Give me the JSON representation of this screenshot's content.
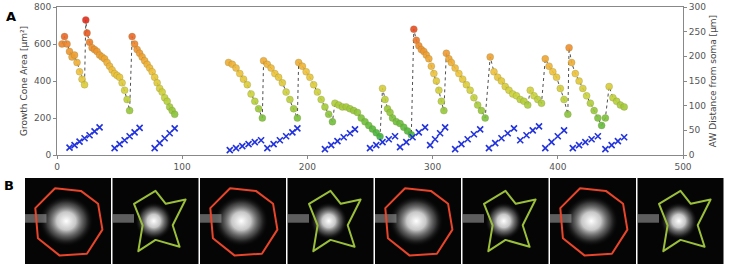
{
  "chart_data": {
    "type": "scatter",
    "title": "A",
    "y_label": "Growth Cone Area [μm²]",
    "y2_label": "AW Distance from soma [μm]",
    "xlim": [
      0,
      500
    ],
    "xticks": [
      0,
      100,
      200,
      300,
      400,
      500
    ],
    "ylim": [
      0,
      800
    ],
    "yticks": [
      0,
      200,
      400,
      600,
      800
    ],
    "y2lim": [
      0,
      300
    ],
    "y2ticks": [
      0,
      50,
      100,
      150,
      200,
      250,
      300
    ],
    "grid": false,
    "series": [
      {
        "marker": "circle",
        "line_style": "dotted",
        "x": [
          4,
          6,
          8,
          10,
          12,
          14,
          16,
          18,
          20,
          22,
          23,
          24,
          26,
          28,
          30,
          32,
          34,
          36,
          38,
          40,
          42,
          44,
          46,
          48,
          50,
          52,
          54,
          56,
          58,
          60,
          62,
          64,
          66,
          68,
          70,
          72,
          74,
          76,
          78,
          80,
          82,
          84,
          86,
          88,
          90,
          92,
          94,
          115,
          137,
          140,
          143,
          146,
          149,
          152,
          155,
          158,
          161,
          164,
          165,
          168,
          171,
          174,
          177,
          180,
          183,
          186,
          189,
          192,
          193,
          196,
          199,
          202,
          205,
          208,
          211,
          214,
          217,
          220,
          222,
          225,
          228,
          231,
          234,
          237,
          240,
          243,
          246,
          249,
          252,
          255,
          258,
          260,
          262,
          264,
          266,
          268,
          271,
          274,
          277,
          280,
          283,
          285,
          287,
          289,
          291,
          293,
          295,
          297,
          299,
          301,
          303,
          305,
          307,
          309,
          311,
          313,
          315,
          318,
          321,
          324,
          327,
          330,
          333,
          336,
          339,
          342,
          346,
          349,
          352,
          355,
          358,
          361,
          364,
          367,
          370,
          373,
          376,
          378,
          381,
          384,
          387,
          390,
          393,
          396,
          399,
          402,
          405,
          408,
          409,
          411,
          414,
          417,
          420,
          423,
          426,
          429,
          432,
          435,
          438,
          441,
          444,
          447,
          450,
          453
        ],
        "values": [
          600,
          640,
          600,
          560,
          530,
          540,
          500,
          450,
          410,
          380,
          730,
          660,
          610,
          580,
          570,
          560,
          540,
          530,
          520,
          500,
          480,
          460,
          440,
          430,
          420,
          390,
          350,
          300,
          240,
          640,
          600,
          570,
          550,
          530,
          510,
          490,
          470,
          450,
          420,
          390,
          360,
          340,
          310,
          290,
          260,
          240,
          220,
          null,
          500,
          490,
          470,
          440,
          410,
          380,
          330,
          290,
          250,
          200,
          510,
          490,
          470,
          440,
          420,
          390,
          340,
          300,
          250,
          200,
          500,
          480,
          450,
          420,
          380,
          340,
          300,
          260,
          220,
          180,
          280,
          270,
          260,
          260,
          250,
          240,
          230,
          200,
          180,
          160,
          140,
          120,
          100,
          360,
          300,
          250,
          230,
          200,
          180,
          170,
          150,
          130,
          110,
          680,
          620,
          590,
          570,
          560,
          540,
          520,
          480,
          440,
          400,
          350,
          290,
          240,
          550,
          520,
          500,
          470,
          440,
          410,
          380,
          350,
          310,
          270,
          240,
          200,
          530,
          450,
          420,
          400,
          370,
          350,
          330,
          320,
          300,
          290,
          270,
          350,
          320,
          300,
          280,
          520,
          480,
          450,
          420,
          360,
          300,
          220,
          580,
          500,
          440,
          400,
          360,
          320,
          280,
          240,
          200,
          160,
          200,
          370,
          310,
          290,
          270,
          260
        ]
      },
      {
        "axis": "y2",
        "marker": "x",
        "color": "#2233dd",
        "x": [
          10,
          14,
          18,
          22,
          26,
          30,
          34,
          46,
          50,
          54,
          58,
          62,
          66,
          78,
          82,
          86,
          90,
          94,
          138,
          143,
          148,
          153,
          158,
          163,
          168,
          173,
          178,
          183,
          188,
          192,
          214,
          219,
          224,
          229,
          234,
          238,
          250,
          255,
          260,
          265,
          270,
          274,
          279,
          284,
          289,
          294,
          298,
          302,
          306,
          310,
          318,
          323,
          328,
          333,
          338,
          345,
          350,
          355,
          360,
          365,
          370,
          375,
          380,
          385,
          390,
          395,
          400,
          405,
          412,
          417,
          422,
          427,
          432,
          438,
          443,
          448,
          453
        ],
        "values": [
          15,
          20,
          27,
          34,
          40,
          48,
          56,
          14,
          22,
          30,
          38,
          46,
          55,
          14,
          24,
          34,
          44,
          54,
          10,
          14,
          18,
          22,
          26,
          30,
          14,
          22,
          30,
          38,
          46,
          54,
          12,
          20,
          28,
          36,
          44,
          52,
          14,
          20,
          26,
          32,
          38,
          16,
          26,
          36,
          46,
          56,
          20,
          32,
          44,
          56,
          12,
          22,
          32,
          42,
          52,
          14,
          24,
          34,
          44,
          54,
          30,
          40,
          50,
          58,
          14,
          26,
          38,
          50,
          14,
          20,
          26,
          32,
          38,
          12,
          20,
          28,
          36
        ]
      }
    ]
  },
  "panel_b": {
    "label": "B",
    "outlines": [
      "#e8452a",
      "#9bbf3a",
      "#e8452a",
      "#9bbf3a",
      "#e8452a",
      "#9bbf3a",
      "#e8452a",
      "#9bbf3a"
    ]
  }
}
